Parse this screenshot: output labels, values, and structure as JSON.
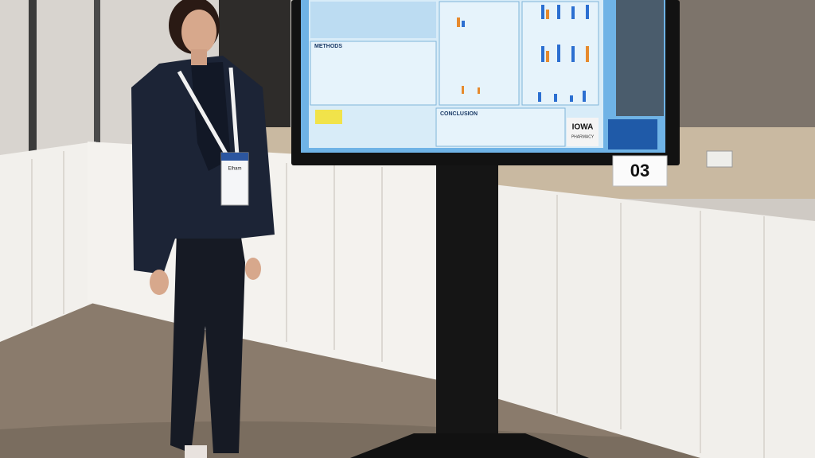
{
  "scene": {
    "sign": "03",
    "badge_name": "Elham",
    "poster": {
      "methods": "METHODS",
      "conclusion": "CONCLUSION",
      "logo": "IOWA",
      "logo_sub": "PHARMACY"
    }
  }
}
